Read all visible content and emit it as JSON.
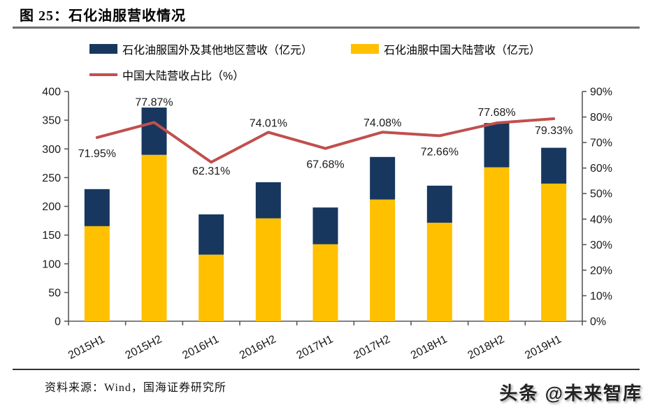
{
  "header": {
    "title": "图 25：石化油服营收情况"
  },
  "legend": [
    {
      "label": "石化油服国外及其他地区营收（亿元）",
      "color": "#17375E",
      "swatch": "box"
    },
    {
      "label": "石化油服中国大陆营收（亿元）",
      "color": "#FFC000",
      "swatch": "box"
    },
    {
      "label": "中国大陆营收占比（%）",
      "color": "#C0504D",
      "swatch": "line"
    }
  ],
  "chart_data": {
    "type": "bar",
    "subtype": "stacked-bars-with-line-overlay",
    "title": "石化油服营收情况",
    "categories": [
      "2015H1",
      "2015H2",
      "2016H1",
      "2016H2",
      "2017H1",
      "2017H2",
      "2018H1",
      "2018H2",
      "2019H1"
    ],
    "series": [
      {
        "name": "石化油服中国大陆营收（亿元）",
        "type": "bar",
        "stack": "revenue",
        "axis": "left",
        "color": "#FFC000",
        "values": [
          165.5,
          289.7,
          115.9,
          179.1,
          134.0,
          211.9,
          171.5,
          268.0,
          239.6
        ]
      },
      {
        "name": "石化油服国外及其他地区营收（亿元）",
        "type": "bar",
        "stack": "revenue",
        "axis": "left",
        "color": "#17375E",
        "values": [
          64.5,
          82.3,
          70.1,
          62.9,
          64.0,
          74.1,
          64.5,
          77.0,
          62.4
        ]
      },
      {
        "name": "中国大陆营收占比（%）",
        "type": "line",
        "axis": "right",
        "color": "#C0504D",
        "values": [
          71.95,
          77.87,
          62.31,
          74.01,
          67.68,
          74.08,
          72.66,
          77.68,
          79.33
        ],
        "point_labels": [
          "71.95%",
          "77.87%",
          "62.31%",
          "74.01%",
          "67.68%",
          "74.08%",
          "72.66%",
          "77.68%",
          "79.33%"
        ],
        "label_side": [
          "below",
          "above",
          "below",
          "above",
          "below",
          "above",
          "below",
          "above",
          "below"
        ],
        "label_dy": [
          28,
          -24,
          18,
          -8,
          28,
          -8,
          28,
          -10,
          22
        ]
      }
    ],
    "left_axis": {
      "min": 0,
      "max": 400,
      "step": 50,
      "tick_labels": [
        "0",
        "50",
        "100",
        "150",
        "200",
        "250",
        "300",
        "350",
        "400"
      ]
    },
    "right_axis": {
      "min": 0,
      "max": 90,
      "step": 10,
      "tick_labels": [
        "0%",
        "10%",
        "20%",
        "30%",
        "40%",
        "50%",
        "60%",
        "70%",
        "80%",
        "90%"
      ]
    },
    "grid": false,
    "legend_position": "top"
  },
  "footer": {
    "source": "资料来源：Wind，国海证券研究所",
    "watermark": "头条 @未来智库"
  }
}
